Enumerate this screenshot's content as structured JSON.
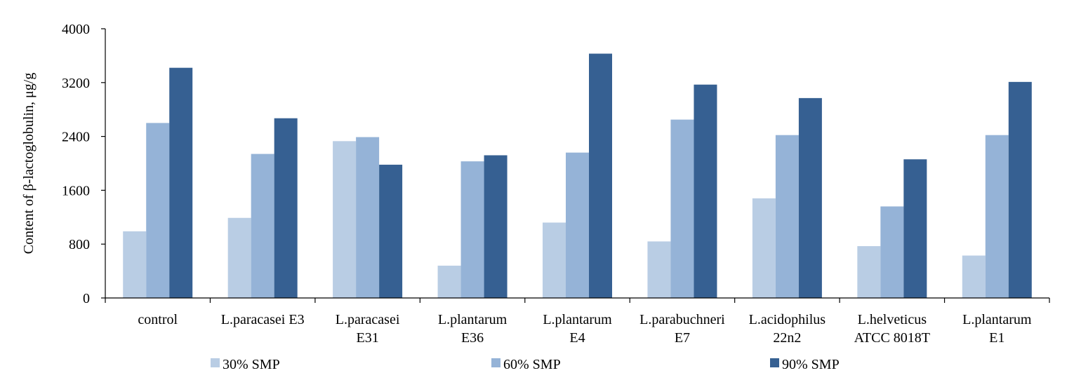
{
  "chart_data": {
    "type": "bar",
    "title": "",
    "xlabel": "",
    "ylabel": "Content of β-lactoglobulin, μg/g",
    "ylim": [
      0,
      4000
    ],
    "yticks": [
      0,
      800,
      1600,
      2400,
      3200,
      4000
    ],
    "grid": false,
    "legend_position": "bottom",
    "categories": [
      [
        "control"
      ],
      [
        "L.paracasei E3"
      ],
      [
        "L.paracasei",
        "E31"
      ],
      [
        "L.plantarum",
        "E36"
      ],
      [
        "L.plantarum",
        "E4"
      ],
      [
        "L.parabuchneri",
        "E7"
      ],
      [
        "L.acidophilus",
        "22n2"
      ],
      [
        "L.helveticus",
        "ATCC 8018T"
      ],
      [
        "L.plantarum",
        "E1"
      ]
    ],
    "series": [
      {
        "name": "30% SMP",
        "color": "#b9cde4",
        "values": [
          990,
          1190,
          2330,
          480,
          1120,
          840,
          1480,
          770,
          630
        ]
      },
      {
        "name": "60% SMP",
        "color": "#95b3d7",
        "values": [
          2600,
          2140,
          2390,
          2030,
          2160,
          2650,
          2420,
          1360,
          2420
        ]
      },
      {
        "name": "90% SMP",
        "color": "#366092",
        "values": [
          3420,
          2670,
          1980,
          2120,
          3630,
          3170,
          2970,
          2060,
          3210
        ]
      }
    ]
  }
}
